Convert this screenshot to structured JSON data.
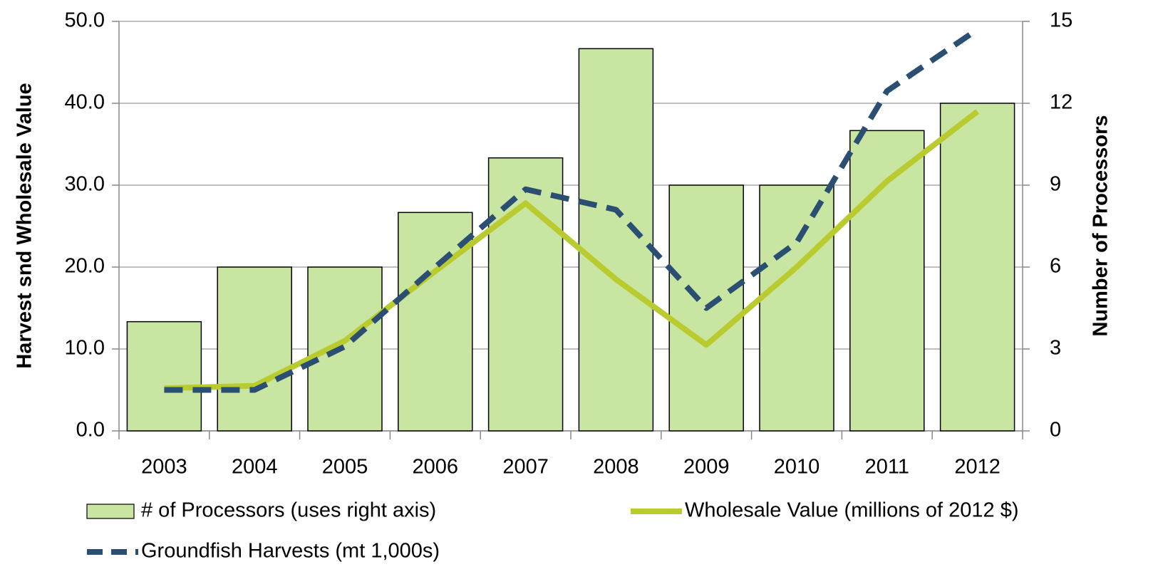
{
  "chart_data": {
    "type": "combo",
    "categories": [
      "2003",
      "2004",
      "2005",
      "2006",
      "2007",
      "2008",
      "2009",
      "2010",
      "2011",
      "2012"
    ],
    "ylabel": "Harvest snd Wholesale Value",
    "y2label": "Number of Processors",
    "ylim": [
      0,
      50
    ],
    "yticks": [
      {
        "value": 0,
        "label": "0.0"
      },
      {
        "value": 10,
        "label": "10.0"
      },
      {
        "value": 20,
        "label": "20.0"
      },
      {
        "value": 30,
        "label": "30.0"
      },
      {
        "value": 40,
        "label": "40.0"
      },
      {
        "value": 50,
        "label": "50.0"
      }
    ],
    "y2lim": [
      0,
      15
    ],
    "y2ticks": [
      0,
      3,
      6,
      9,
      12,
      15
    ],
    "grid": true,
    "legend": "bottom",
    "series": [
      {
        "name": "# of Processors (uses right axis)",
        "type": "bar",
        "axis": "y2",
        "color": "#c8e6a2",
        "values": [
          4,
          6,
          6,
          8,
          10,
          14,
          9,
          9,
          11,
          12
        ]
      },
      {
        "name": "Wholesale Value (millions of 2012 $)",
        "type": "line",
        "color": "#b9cb2f",
        "values": [
          5.2,
          5.5,
          11,
          19.5,
          27.8,
          18.5,
          10.5,
          20,
          30.5,
          39
        ]
      },
      {
        "name": "Groundfish Harvests (mt 1,000s)",
        "type": "line",
        "dashed": true,
        "color": "#2b4f72",
        "values": [
          5,
          5,
          10.3,
          20,
          29.5,
          27,
          15,
          23,
          41.5,
          49
        ]
      }
    ]
  }
}
